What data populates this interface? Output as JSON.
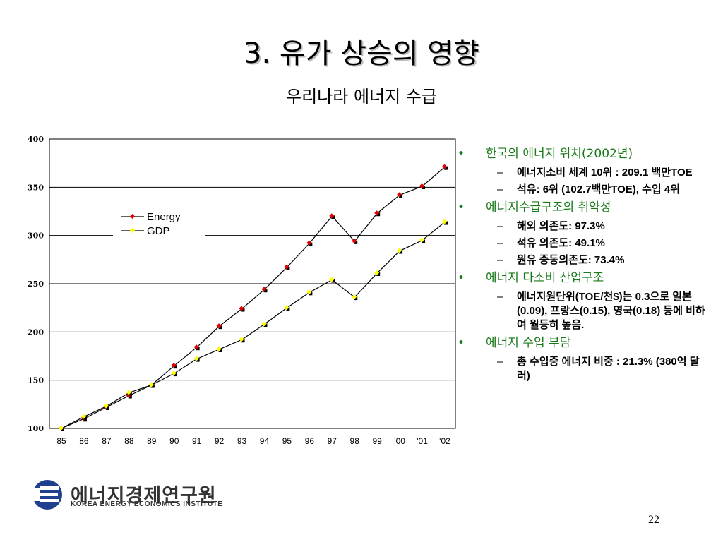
{
  "slide": {
    "title": "3. 유가 상승의 영향",
    "subtitle": "우리나라 에너지 수급",
    "page_number": "22"
  },
  "chart_data": {
    "type": "line",
    "categories": [
      "85",
      "86",
      "87",
      "88",
      "89",
      "90",
      "91",
      "92",
      "93",
      "94",
      "95",
      "96",
      "97",
      "98",
      "99",
      "'00",
      "'01",
      "'02"
    ],
    "ylim": [
      100,
      400
    ],
    "yticks": [
      100,
      150,
      200,
      250,
      300,
      350,
      400
    ],
    "grid": true,
    "legend_position": "top-left",
    "series": [
      {
        "name": "Energy",
        "color": "#e00000",
        "values": [
          100,
          110,
          122,
          134,
          145,
          165,
          184,
          206,
          224,
          244,
          267,
          292,
          320,
          294,
          323,
          342,
          351,
          371
        ]
      },
      {
        "name": "GDP",
        "color": "#ffff00",
        "values": [
          100,
          112,
          123,
          137,
          145,
          157,
          172,
          182,
          192,
          208,
          225,
          241,
          254,
          236,
          261,
          284,
          295,
          314
        ]
      }
    ]
  },
  "bullets": [
    {
      "text": "한국의 에너지 위치(2002년)",
      "subs": [
        "에너지소비 세계 10위 : 209.1 백만TOE",
        "석유: 6위 (102.7백만TOE), 수입 4위"
      ]
    },
    {
      "text": "에너지수급구조의 취약성",
      "subs": [
        "해외 의존도: 97.3%",
        "석유 의존도: 49.1%",
        "원유 중동의존도: 73.4%"
      ]
    },
    {
      "text": "에너지 다소비 산업구조",
      "subs": [
        "에너지원단위(TOE/천$)는 0.3으로 일본(0.09), 프랑스(0.15), 영국(0.18) 등에 비하여 월등히 높음."
      ]
    },
    {
      "text": "에너지 수입 부담",
      "subs": [
        "총 수입중 에너지 비중 : 21.3% (380억 달러)"
      ]
    }
  ],
  "logo": {
    "name_ko": "에너지경제연구원",
    "name_en": "KOREA ENERGY ECONOMICS INSTITUTE"
  }
}
